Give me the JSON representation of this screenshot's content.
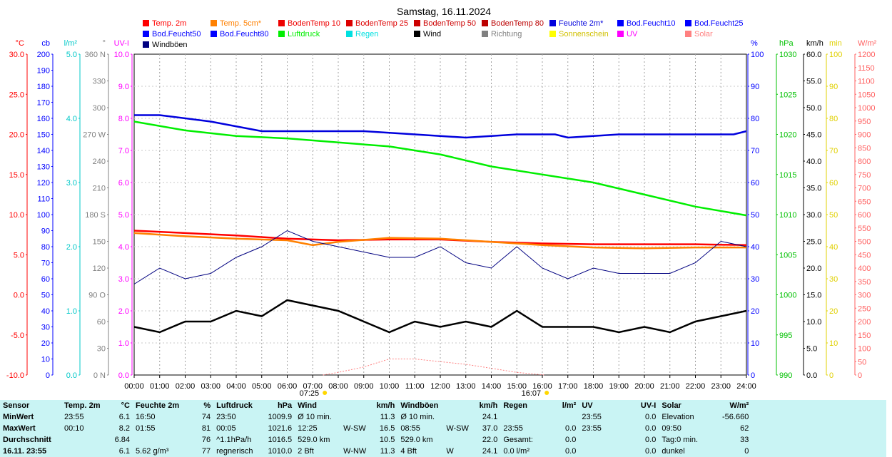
{
  "title": "Samstag, 16.11.2024",
  "legend": [
    {
      "label": "Temp. 2m",
      "color": "#ff0000"
    },
    {
      "label": "Temp. 5cm*",
      "color": "#ff8000"
    },
    {
      "label": "BodenTemp 10",
      "color": "#ee0000"
    },
    {
      "label": "BodenTemp 25",
      "color": "#dd0000"
    },
    {
      "label": "BodenTemp 50",
      "color": "#cc0000"
    },
    {
      "label": "BodenTemp 80",
      "color": "#bb0000"
    },
    {
      "label": "Feuchte 2m*",
      "color": "#0000dd"
    },
    {
      "label": "Bod.Feucht10",
      "color": "#0000ff"
    },
    {
      "label": "Bod.Feucht25",
      "color": "#0000ff"
    },
    {
      "label": "Bod.Feucht50",
      "color": "#0000ff"
    },
    {
      "label": "Bod.Feucht80",
      "color": "#0000ff"
    },
    {
      "label": "Luftdruck",
      "color": "#00ee00"
    },
    {
      "label": "Regen",
      "color": "#00e0e0"
    },
    {
      "label": "Wind",
      "color": "#000000"
    },
    {
      "label": "Richtung",
      "color": "#808080"
    },
    {
      "label": "Sonnenschein",
      "color": "#ffff00"
    },
    {
      "label": "UV",
      "color": "#ff00ff"
    },
    {
      "label": "Solar",
      "color": "#ff8080"
    },
    {
      "label": "Windböen",
      "color": "#000080"
    }
  ],
  "axes_left": [
    {
      "unit": "°C",
      "color": "#ff0000",
      "ticks": [
        "30.0",
        "25.0",
        "20.0",
        "15.0",
        "10.0",
        "5.0",
        "0.0",
        "-5.0",
        "-10.0"
      ]
    },
    {
      "unit": "cb",
      "color": "#0000ff",
      "ticks": [
        "200",
        "190",
        "180",
        "170",
        "160",
        "150",
        "140",
        "130",
        "120",
        "110",
        "100",
        "90",
        "80",
        "70",
        "60",
        "50",
        "40",
        "30",
        "20",
        "10",
        "0"
      ]
    },
    {
      "unit": "l/m²",
      "color": "#00c8c8",
      "ticks": [
        "5.0",
        "4.0",
        "3.0",
        "2.0",
        "1.0",
        "0.0"
      ]
    },
    {
      "unit": "°",
      "color": "#808080",
      "ticks": [
        "360 N",
        "330",
        "300",
        "270 W",
        "240",
        "210",
        "180 S",
        "150",
        "120",
        "90 O",
        "60",
        "30",
        "0 N"
      ]
    },
    {
      "unit": "UV-I",
      "color": "#ff00ff",
      "ticks": [
        "10.0",
        "9.0",
        "8.0",
        "7.0",
        "6.0",
        "5.0",
        "4.0",
        "3.0",
        "2.0",
        "1.0",
        "0.0"
      ]
    }
  ],
  "axes_right": [
    {
      "unit": "%",
      "color": "#0000ff",
      "ticks": [
        "100",
        "90",
        "80",
        "70",
        "60",
        "50",
        "40",
        "30",
        "20",
        "10",
        "0"
      ]
    },
    {
      "unit": "hPa",
      "color": "#00c000",
      "ticks": [
        "1030",
        "1025",
        "1020",
        "1015",
        "1010",
        "1005",
        "1000",
        "995",
        "990"
      ]
    },
    {
      "unit": "km/h",
      "color": "#000000",
      "ticks": [
        "60.0",
        "55.0",
        "50.0",
        "45.0",
        "40.0",
        "35.0",
        "30.0",
        "25.0",
        "20.0",
        "15.0",
        "10.0",
        "5.0",
        "0.0"
      ]
    },
    {
      "unit": "min",
      "color": "#e0d000",
      "ticks": [
        "100",
        "90",
        "80",
        "70",
        "60",
        "50",
        "40",
        "30",
        "20",
        "10",
        "0"
      ]
    },
    {
      "unit": "W/m²",
      "color": "#ff6060",
      "ticks": [
        "1200",
        "1150",
        "1100",
        "1050",
        "1000",
        "950",
        "900",
        "850",
        "800",
        "750",
        "700",
        "650",
        "600",
        "550",
        "500",
        "450",
        "400",
        "350",
        "300",
        "250",
        "200",
        "150",
        "100",
        "50",
        "0"
      ]
    }
  ],
  "time_ticks": [
    "00:00",
    "01:00",
    "02:00",
    "03:00",
    "04:00",
    "05:00",
    "06:00",
    "07:00",
    "08:00",
    "09:00",
    "10:00",
    "11:00",
    "12:00",
    "13:00",
    "14:00",
    "15:00",
    "16:00",
    "17:00",
    "18:00",
    "19:00",
    "20:00",
    "21:00",
    "22:00",
    "23:00",
    "24:00"
  ],
  "sunrise": "07:25",
  "sunset": "16:07",
  "chart_data": {
    "type": "line",
    "title": "Samstag, 16.11.2024",
    "x_range": [
      "00:00",
      "24:00"
    ],
    "series": [
      {
        "name": "Temp. 2m",
        "unit": "°C",
        "color": "#ff0000",
        "x": [
          0,
          2,
          4,
          6,
          8,
          10,
          12,
          14,
          16,
          18,
          20,
          22,
          24
        ],
        "values": [
          8.0,
          7.7,
          7.4,
          7.0,
          6.8,
          6.9,
          6.9,
          6.6,
          6.4,
          6.3,
          6.3,
          6.3,
          6.2
        ]
      },
      {
        "name": "Temp. 5cm*",
        "unit": "°C",
        "color": "#ff8000",
        "x": [
          0,
          2,
          4,
          6,
          7,
          8,
          10,
          12,
          14,
          16,
          18,
          20,
          22,
          24
        ],
        "values": [
          7.7,
          7.3,
          7.0,
          6.8,
          6.2,
          6.6,
          7.1,
          7.0,
          6.6,
          6.2,
          5.9,
          5.8,
          5.9,
          5.9
        ]
      },
      {
        "name": "Feuchte 2m*",
        "unit": "%",
        "color": "#0000dd",
        "x": [
          0,
          1,
          3,
          5,
          6,
          9,
          11,
          13,
          15,
          16.5,
          17,
          19,
          22,
          23.5,
          24
        ],
        "values": [
          81,
          81,
          79,
          76,
          76,
          76,
          75,
          74,
          75,
          75,
          74,
          75,
          75,
          75,
          76
        ]
      },
      {
        "name": "Luftdruck",
        "unit": "hPa",
        "color": "#00ee00",
        "x": [
          0,
          2,
          4,
          6,
          8,
          10,
          12,
          14,
          16,
          18,
          20,
          22,
          24
        ],
        "values": [
          1021.6,
          1020.5,
          1019.8,
          1019.5,
          1019.0,
          1018.5,
          1017.5,
          1016.0,
          1015.0,
          1014.0,
          1012.5,
          1011.0,
          1009.9
        ]
      },
      {
        "name": "Wind",
        "unit": "km/h",
        "color": "#000000",
        "x": [
          0,
          1,
          2,
          3,
          4,
          5,
          6,
          7,
          8,
          9,
          10,
          11,
          12,
          13,
          14,
          15,
          16,
          17,
          18,
          19,
          20,
          21,
          22,
          23,
          24
        ],
        "values": [
          9,
          8,
          10,
          10,
          12,
          11,
          14,
          13,
          12,
          10,
          8,
          10,
          9,
          10,
          9,
          12,
          9,
          9,
          9,
          8,
          9,
          8,
          10,
          11,
          12
        ]
      },
      {
        "name": "Windböen",
        "unit": "km/h",
        "color": "#000080",
        "x": [
          0,
          1,
          2,
          3,
          4,
          5,
          6,
          7,
          8,
          9,
          10,
          11,
          12,
          13,
          14,
          15,
          16,
          17,
          18,
          19,
          20,
          21,
          22,
          23,
          24
        ],
        "values": [
          17,
          20,
          18,
          19,
          22,
          24,
          27,
          25,
          24,
          23,
          22,
          22,
          24,
          21,
          20,
          24,
          20,
          18,
          20,
          19,
          19,
          19,
          21,
          25,
          24
        ]
      },
      {
        "name": "Solar",
        "unit": "W/m²",
        "color": "#ff8080",
        "x": [
          7.4,
          8,
          9,
          10,
          11,
          12,
          13,
          14,
          15,
          16.1
        ],
        "values": [
          0,
          10,
          30,
          60,
          60,
          50,
          40,
          25,
          10,
          0
        ]
      }
    ]
  },
  "stats": {
    "headers": [
      "Sensor",
      "Temp. 2m",
      "°C",
      "Feuchte 2m",
      "%",
      "Luftdruck",
      "hPa",
      "Wind",
      "km/h",
      "Windböen",
      "km/h",
      "Regen",
      "l/m²",
      "UV",
      "UV-I",
      "Solar",
      "W/m²"
    ],
    "rows": [
      [
        "MinWert",
        "23:55",
        "6.1",
        "16:50",
        "74",
        "23:50",
        "1009.9",
        "Ø 10 min.",
        "",
        "11.3",
        "Ø 10 min.",
        "",
        "24.1",
        "",
        "",
        "23:55",
        "0.0",
        "Elevation",
        "-56.660"
      ],
      [
        "MaxWert",
        "00:10",
        "8.2",
        "01:55",
        "81",
        "00:05",
        "1021.6",
        "12:25",
        "W-SW",
        "16.5",
        "08:55",
        "W-SW",
        "37.0",
        "23:55",
        "0.0",
        "23:55",
        "0.0",
        "09:50",
        "62"
      ],
      [
        "Durchschnitt",
        "",
        "6.84",
        "",
        "76",
        "^1.1hPa/h",
        "1016.5",
        "529.0 km",
        "",
        "10.5",
        "529.0 km",
        "",
        "22.0",
        "Gesamt:",
        "0.0",
        "",
        "0.0",
        "Tag:0 min.",
        "33"
      ],
      [
        "16.11. 23:55",
        "",
        "6.1",
        "5.62 g/m³",
        "77",
        "regnerisch",
        "1010.0",
        "2 Bft",
        "W-NW",
        "11.3",
        "4 Bft",
        "W",
        "24.1",
        "0.0 l/m²",
        "0.0",
        "",
        "0.0",
        "dunkel",
        "0"
      ]
    ]
  }
}
